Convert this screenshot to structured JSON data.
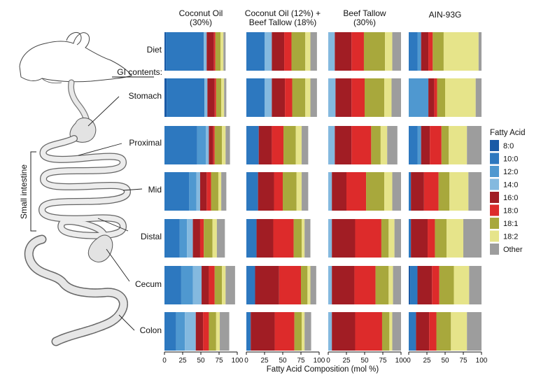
{
  "chart_data": {
    "type": "bar",
    "orientation": "horizontal",
    "stacked": true,
    "xlabel": "Fatty Acid Composition (mol %)",
    "xlim": [
      0,
      100
    ],
    "xticks": [
      "0",
      "25",
      "50",
      "75",
      "100"
    ],
    "legend_title": "Fatty Acid",
    "legend_position": "right",
    "section_label": "GI contents:",
    "bracket_label": "Small intestine",
    "categories": [
      "Diet",
      "Stomach",
      "Proximal",
      "Mid",
      "Distal",
      "Cecum",
      "Colon"
    ],
    "fatty_acids": [
      "8:0",
      "10:0",
      "12:0",
      "14:0",
      "16:0",
      "18:0",
      "18:1",
      "18:2",
      "Other"
    ],
    "colors": [
      "#1a5aa6",
      "#2d78bf",
      "#4f98d0",
      "#84b9df",
      "#a11d24",
      "#dd2b2b",
      "#a8a83c",
      "#e6e48a",
      "#9d9d9d"
    ],
    "panels": [
      {
        "title_lines": [
          "Coconut Oil",
          "(30%)"
        ],
        "values": [
          [
            2,
            52,
            0,
            4,
            10,
            2,
            7,
            4,
            3
          ],
          [
            3,
            52,
            0,
            4,
            10,
            2,
            7,
            4,
            3
          ],
          [
            0,
            45,
            12,
            4,
            6,
            2,
            10,
            5,
            6
          ],
          [
            0,
            34,
            10,
            5,
            9,
            6,
            10,
            4,
            7
          ],
          [
            0,
            21,
            10,
            8,
            10,
            5,
            12,
            6,
            11
          ],
          [
            0,
            23,
            16,
            12,
            10,
            8,
            10,
            5,
            13
          ],
          [
            0,
            16,
            12,
            15,
            10,
            8,
            10,
            5,
            13
          ]
        ]
      },
      {
        "title_lines": [
          "Coconut Oil (12%) +",
          "Beef Tallow (18%)"
        ],
        "values": [
          [
            0,
            25,
            0,
            10,
            17,
            10,
            19,
            7,
            9
          ],
          [
            0,
            25,
            0,
            10,
            18,
            10,
            18,
            7,
            9
          ],
          [
            0,
            17,
            0,
            0,
            18,
            16,
            17,
            8,
            9
          ],
          [
            0,
            16,
            0,
            0,
            22,
            12,
            19,
            7,
            9
          ],
          [
            0,
            14,
            0,
            0,
            23,
            28,
            11,
            4,
            8
          ],
          [
            0,
            12,
            0,
            0,
            33,
            30,
            9,
            4,
            8
          ],
          [
            0,
            6,
            0,
            0,
            33,
            27,
            10,
            4,
            9
          ]
        ]
      },
      {
        "title_lines": [
          "Beef Tallow",
          "(30%)"
        ],
        "values": [
          [
            0,
            0,
            0,
            9,
            23,
            17,
            29,
            10,
            12
          ],
          [
            0,
            0,
            0,
            10,
            22,
            18,
            27,
            10,
            13
          ],
          [
            0,
            0,
            0,
            9,
            23,
            27,
            13,
            9,
            14
          ],
          [
            0,
            0,
            0,
            5,
            20,
            27,
            25,
            11,
            12
          ],
          [
            0,
            0,
            0,
            5,
            32,
            36,
            10,
            8,
            9
          ],
          [
            0,
            0,
            0,
            5,
            31,
            29,
            18,
            6,
            11
          ],
          [
            0,
            0,
            0,
            5,
            32,
            37,
            10,
            4,
            12
          ]
        ]
      },
      {
        "title_lines": [
          "AIN-93G"
        ],
        "values": [
          [
            0,
            12,
            5,
            0,
            10,
            6,
            15,
            48,
            4
          ],
          [
            0,
            0,
            27,
            0,
            8,
            4,
            11,
            42,
            8
          ],
          [
            0,
            12,
            5,
            0,
            12,
            16,
            10,
            25,
            20
          ],
          [
            0,
            3,
            0,
            0,
            18,
            20,
            15,
            26,
            18
          ],
          [
            0,
            3,
            0,
            0,
            23,
            10,
            16,
            23,
            25
          ],
          [
            2,
            10,
            0,
            0,
            20,
            10,
            20,
            21,
            17
          ],
          [
            0,
            10,
            0,
            0,
            18,
            10,
            20,
            22,
            20
          ]
        ]
      }
    ]
  }
}
